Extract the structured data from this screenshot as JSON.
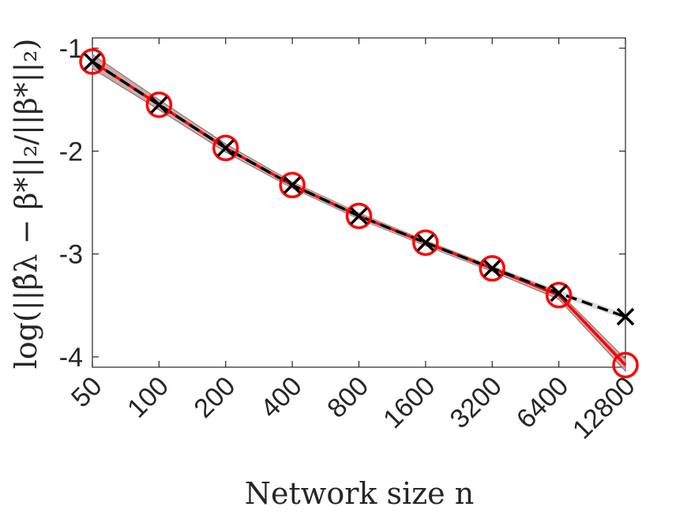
{
  "chart_data": {
    "type": "line",
    "title": "",
    "xlabel": "Network size n",
    "ylabel": "log(||β̂λ − β*||₂/||β*||₂)",
    "categories": [
      "50",
      "100",
      "200",
      "400",
      "800",
      "1600",
      "3200",
      "6400",
      "12800"
    ],
    "ylim": [
      -4.1,
      -0.9
    ],
    "yticks": [
      -1,
      -2,
      -3,
      -4
    ],
    "ytick_labels": [
      "-1",
      "-2",
      "-3",
      "-4"
    ],
    "grid": false,
    "legend": "none",
    "series": [
      {
        "values": [
          -1.13,
          -1.55,
          -1.97,
          -2.33,
          -2.63,
          -2.89,
          -3.14,
          -3.4,
          -4.08
        ],
        "band_lower": [
          -1.06,
          -1.5,
          -1.93,
          -2.3,
          -2.6,
          -2.87,
          -3.12,
          -3.37,
          -4.02
        ],
        "band_upper": [
          -1.2,
          -1.6,
          -2.01,
          -2.36,
          -2.66,
          -2.92,
          -3.17,
          -3.44,
          -4.14
        ],
        "color": "#ff0000",
        "band_color": "#c49898",
        "marker": "circle",
        "line_style": "solid"
      },
      {
        "values": [
          -1.13,
          -1.55,
          -1.97,
          -2.33,
          -2.63,
          -2.89,
          -3.14,
          -3.38,
          -3.61
        ],
        "color": "#000000",
        "marker": "x",
        "line_style": "dashed"
      }
    ]
  }
}
